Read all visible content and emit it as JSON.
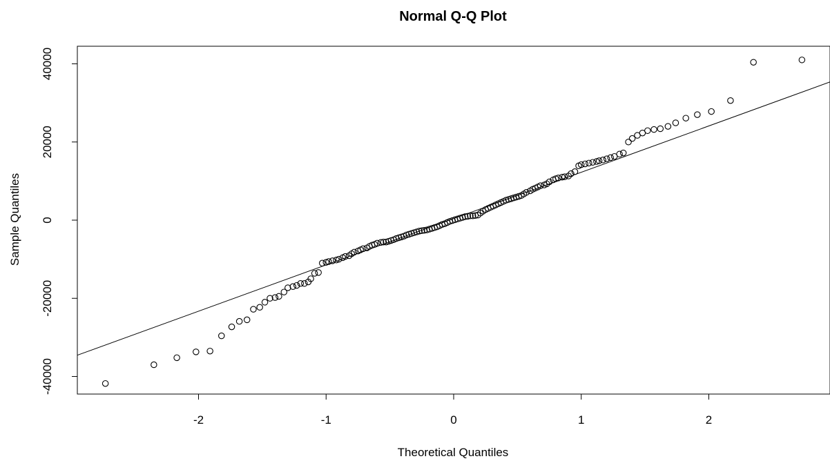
{
  "chart_data": {
    "type": "scatter",
    "title": "Normal Q-Q Plot",
    "xlabel": "Theoretical Quantiles",
    "ylabel": "Sample Quantiles",
    "xlim": [
      -2.95,
      2.95
    ],
    "ylim": [
      -44500,
      44500
    ],
    "x_ticks": [
      -2,
      -1,
      0,
      1,
      2
    ],
    "y_ticks": [
      -40000,
      -20000,
      0,
      20000,
      40000
    ],
    "x_tick_labels": [
      "-2",
      "-1",
      "0",
      "1",
      "2"
    ],
    "y_tick_labels": [
      "-40000",
      "-20000",
      "0",
      "20000",
      "40000"
    ],
    "reference_line": {
      "slope": 11850,
      "intercept": 400
    },
    "grid": false,
    "points": [
      [
        -2.73,
        -41800
      ],
      [
        -2.35,
        -37000
      ],
      [
        -2.17,
        -35200
      ],
      [
        -2.02,
        -33700
      ],
      [
        -1.91,
        -33500
      ],
      [
        -1.82,
        -29600
      ],
      [
        -1.74,
        -27300
      ],
      [
        -1.68,
        -25900
      ],
      [
        -1.62,
        -25500
      ],
      [
        -1.57,
        -22800
      ],
      [
        -1.52,
        -22300
      ],
      [
        -1.48,
        -21000
      ],
      [
        -1.44,
        -20000
      ],
      [
        -1.4,
        -19800
      ],
      [
        -1.37,
        -19500
      ],
      [
        -1.33,
        -18400
      ],
      [
        -1.3,
        -17300
      ],
      [
        -1.26,
        -17000
      ],
      [
        -1.23,
        -16700
      ],
      [
        -1.2,
        -16200
      ],
      [
        -1.17,
        -16200
      ],
      [
        -1.14,
        -15800
      ],
      [
        -1.12,
        -15000
      ],
      [
        -1.09,
        -13600
      ],
      [
        -1.06,
        -13400
      ],
      [
        -1.03,
        -11000
      ],
      [
        -1.0,
        -10800
      ],
      [
        -0.98,
        -10600
      ],
      [
        -0.95,
        -10400
      ],
      [
        -0.92,
        -10200
      ],
      [
        -0.9,
        -10000
      ],
      [
        -0.87,
        -9600
      ],
      [
        -0.85,
        -9300
      ],
      [
        -0.82,
        -9100
      ],
      [
        -0.8,
        -8600
      ],
      [
        -0.78,
        -8200
      ],
      [
        -0.75,
        -7900
      ],
      [
        -0.73,
        -7600
      ],
      [
        -0.71,
        -7300
      ],
      [
        -0.68,
        -7100
      ],
      [
        -0.66,
        -6700
      ],
      [
        -0.64,
        -6400
      ],
      [
        -0.62,
        -6200
      ],
      [
        -0.6,
        -5900
      ],
      [
        -0.57,
        -5700
      ],
      [
        -0.55,
        -5600
      ],
      [
        -0.53,
        -5600
      ],
      [
        -0.51,
        -5400
      ],
      [
        -0.49,
        -5200
      ],
      [
        -0.47,
        -5000
      ],
      [
        -0.45,
        -4700
      ],
      [
        -0.43,
        -4500
      ],
      [
        -0.41,
        -4300
      ],
      [
        -0.39,
        -4100
      ],
      [
        -0.37,
        -3800
      ],
      [
        -0.35,
        -3600
      ],
      [
        -0.33,
        -3400
      ],
      [
        -0.31,
        -3200
      ],
      [
        -0.29,
        -3000
      ],
      [
        -0.27,
        -2800
      ],
      [
        -0.25,
        -2700
      ],
      [
        -0.23,
        -2600
      ],
      [
        -0.21,
        -2500
      ],
      [
        -0.19,
        -2300
      ],
      [
        -0.17,
        -2100
      ],
      [
        -0.15,
        -1900
      ],
      [
        -0.13,
        -1700
      ],
      [
        -0.11,
        -1400
      ],
      [
        -0.09,
        -1100
      ],
      [
        -0.07,
        -900
      ],
      [
        -0.05,
        -600
      ],
      [
        -0.03,
        -300
      ],
      [
        -0.01,
        -100
      ],
      [
        0.01,
        100
      ],
      [
        0.03,
        300
      ],
      [
        0.05,
        500
      ],
      [
        0.07,
        700
      ],
      [
        0.09,
        900
      ],
      [
        0.11,
        1000
      ],
      [
        0.13,
        1100
      ],
      [
        0.15,
        1100
      ],
      [
        0.17,
        1200
      ],
      [
        0.19,
        1300
      ],
      [
        0.21,
        1800
      ],
      [
        0.23,
        2300
      ],
      [
        0.25,
        2700
      ],
      [
        0.27,
        3000
      ],
      [
        0.29,
        3300
      ],
      [
        0.31,
        3600
      ],
      [
        0.33,
        3900
      ],
      [
        0.35,
        4200
      ],
      [
        0.37,
        4500
      ],
      [
        0.39,
        4800
      ],
      [
        0.41,
        5100
      ],
      [
        0.43,
        5300
      ],
      [
        0.45,
        5500
      ],
      [
        0.47,
        5700
      ],
      [
        0.49,
        5900
      ],
      [
        0.51,
        6100
      ],
      [
        0.53,
        6300
      ],
      [
        0.55,
        6700
      ],
      [
        0.57,
        7100
      ],
      [
        0.6,
        7500
      ],
      [
        0.62,
        7900
      ],
      [
        0.64,
        8200
      ],
      [
        0.66,
        8500
      ],
      [
        0.68,
        8800
      ],
      [
        0.71,
        9000
      ],
      [
        0.73,
        9300
      ],
      [
        0.75,
        9800
      ],
      [
        0.78,
        10300
      ],
      [
        0.8,
        10600
      ],
      [
        0.82,
        10800
      ],
      [
        0.85,
        11000
      ],
      [
        0.87,
        11100
      ],
      [
        0.9,
        11300
      ],
      [
        0.92,
        11900
      ],
      [
        0.95,
        12400
      ],
      [
        0.98,
        13900
      ],
      [
        1.0,
        14200
      ],
      [
        1.03,
        14400
      ],
      [
        1.06,
        14600
      ],
      [
        1.09,
        14800
      ],
      [
        1.12,
        15000
      ],
      [
        1.14,
        15200
      ],
      [
        1.17,
        15400
      ],
      [
        1.2,
        15700
      ],
      [
        1.23,
        16000
      ],
      [
        1.26,
        16300
      ],
      [
        1.3,
        16900
      ],
      [
        1.33,
        17200
      ],
      [
        1.37,
        20000
      ],
      [
        1.4,
        20900
      ],
      [
        1.44,
        21700
      ],
      [
        1.48,
        22300
      ],
      [
        1.52,
        22900
      ],
      [
        1.57,
        23200
      ],
      [
        1.62,
        23400
      ],
      [
        1.68,
        24000
      ],
      [
        1.74,
        24900
      ],
      [
        1.82,
        26100
      ],
      [
        1.91,
        27000
      ],
      [
        2.02,
        27800
      ],
      [
        2.17,
        30600
      ],
      [
        2.35,
        40400
      ],
      [
        2.73,
        41000
      ]
    ]
  }
}
